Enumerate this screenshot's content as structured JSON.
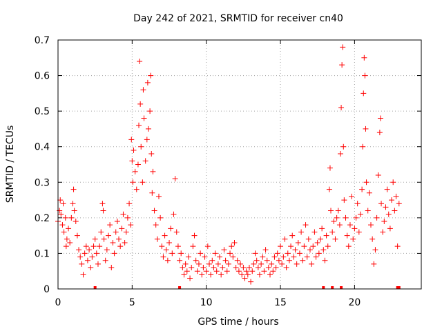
{
  "chart_data": {
    "type": "scatter",
    "title": "Day 242 of 2021, SRMTID for receiver cn40",
    "xlabel": "GPS time / hours",
    "ylabel": "SRMTID / TECUs",
    "xlim": [
      0,
      24.5
    ],
    "ylim": [
      0,
      0.7
    ],
    "x_ticks": [
      {
        "value": 0,
        "label": "0"
      },
      {
        "value": 5,
        "label": "5"
      },
      {
        "value": 10,
        "label": "10"
      },
      {
        "value": 15,
        "label": "15"
      },
      {
        "value": 20,
        "label": "20"
      }
    ],
    "y_ticks": [
      {
        "value": 0,
        "label": "0"
      },
      {
        "value": 0.1,
        "label": "0.1"
      },
      {
        "value": 0.2,
        "label": "0.2"
      },
      {
        "value": 0.3,
        "label": "0.3"
      },
      {
        "value": 0.4,
        "label": "0.4"
      },
      {
        "value": 0.5,
        "label": "0.5"
      },
      {
        "value": 0.6,
        "label": "0.6"
      },
      {
        "value": 0.7,
        "label": "0.7"
      }
    ],
    "grid": true,
    "series": [
      {
        "name": "SRMTID",
        "color": "#ff0000",
        "marker": "plus",
        "points": [
          [
            0.0,
            0.19
          ],
          [
            0.1,
            0.22
          ],
          [
            0.15,
            0.25
          ],
          [
            0.2,
            0.21
          ],
          [
            0.3,
            0.18
          ],
          [
            0.35,
            0.24
          ],
          [
            0.4,
            0.16
          ],
          [
            0.5,
            0.2
          ],
          [
            0.55,
            0.12
          ],
          [
            0.6,
            0.14
          ],
          [
            0.7,
            0.17
          ],
          [
            0.8,
            0.13
          ],
          [
            0.9,
            0.2
          ],
          [
            1.0,
            0.24
          ],
          [
            1.05,
            0.28
          ],
          [
            1.1,
            0.22
          ],
          [
            1.2,
            0.19
          ],
          [
            1.3,
            0.15
          ],
          [
            1.4,
            0.11
          ],
          [
            1.5,
            0.09
          ],
          [
            1.6,
            0.07
          ],
          [
            1.7,
            0.04
          ],
          [
            1.8,
            0.1
          ],
          [
            1.9,
            0.12
          ],
          [
            2.0,
            0.08
          ],
          [
            2.1,
            0.11
          ],
          [
            2.2,
            0.06
          ],
          [
            2.3,
            0.09
          ],
          [
            2.4,
            0.12
          ],
          [
            2.5,
            0.14
          ],
          [
            2.6,
            0.1
          ],
          [
            2.7,
            0.07
          ],
          [
            2.8,
            0.12
          ],
          [
            2.9,
            0.16
          ],
          [
            3.0,
            0.24
          ],
          [
            3.05,
            0.22
          ],
          [
            3.1,
            0.14
          ],
          [
            3.2,
            0.08
          ],
          [
            3.3,
            0.11
          ],
          [
            3.4,
            0.15
          ],
          [
            3.5,
            0.18
          ],
          [
            3.6,
            0.06
          ],
          [
            3.7,
            0.13
          ],
          [
            3.8,
            0.1
          ],
          [
            3.9,
            0.16
          ],
          [
            4.0,
            0.19
          ],
          [
            4.1,
            0.14
          ],
          [
            4.2,
            0.12
          ],
          [
            4.3,
            0.17
          ],
          [
            4.4,
            0.21
          ],
          [
            4.5,
            0.13
          ],
          [
            4.6,
            0.16
          ],
          [
            4.7,
            0.2
          ],
          [
            4.8,
            0.24
          ],
          [
            4.9,
            0.18
          ],
          [
            4.95,
            0.42
          ],
          [
            5.0,
            0.36
          ],
          [
            5.05,
            0.3
          ],
          [
            5.1,
            0.39
          ],
          [
            5.2,
            0.33
          ],
          [
            5.3,
            0.28
          ],
          [
            5.4,
            0.35
          ],
          [
            5.45,
            0.46
          ],
          [
            5.5,
            0.64
          ],
          [
            5.55,
            0.52
          ],
          [
            5.6,
            0.4
          ],
          [
            5.7,
            0.3
          ],
          [
            5.75,
            0.56
          ],
          [
            5.8,
            0.48
          ],
          [
            5.9,
            0.36
          ],
          [
            6.0,
            0.42
          ],
          [
            6.05,
            0.58
          ],
          [
            6.1,
            0.45
          ],
          [
            6.2,
            0.5
          ],
          [
            6.25,
            0.6
          ],
          [
            6.3,
            0.38
          ],
          [
            6.35,
            0.27
          ],
          [
            6.4,
            0.33
          ],
          [
            6.5,
            0.22
          ],
          [
            6.6,
            0.18
          ],
          [
            6.7,
            0.14
          ],
          [
            6.8,
            0.26
          ],
          [
            6.9,
            0.2
          ],
          [
            7.0,
            0.12
          ],
          [
            7.1,
            0.09
          ],
          [
            7.2,
            0.15
          ],
          [
            7.3,
            0.11
          ],
          [
            7.4,
            0.08
          ],
          [
            7.5,
            0.13
          ],
          [
            7.6,
            0.17
          ],
          [
            7.7,
            0.1
          ],
          [
            7.8,
            0.21
          ],
          [
            7.9,
            0.31
          ],
          [
            8.0,
            0.16
          ],
          [
            8.1,
            0.12
          ],
          [
            8.2,
            0.08
          ],
          [
            8.3,
            0.1
          ],
          [
            8.4,
            0.06
          ],
          [
            8.5,
            0.04
          ],
          [
            8.6,
            0.07
          ],
          [
            8.7,
            0.05
          ],
          [
            8.8,
            0.09
          ],
          [
            8.9,
            0.03
          ],
          [
            9.0,
            0.06
          ],
          [
            9.1,
            0.12
          ],
          [
            9.2,
            0.15
          ],
          [
            9.3,
            0.08
          ],
          [
            9.4,
            0.05
          ],
          [
            9.5,
            0.07
          ],
          [
            9.6,
            0.1
          ],
          [
            9.7,
            0.04
          ],
          [
            9.8,
            0.06
          ],
          [
            9.9,
            0.09
          ],
          [
            10.0,
            0.05
          ],
          [
            10.1,
            0.12
          ],
          [
            10.2,
            0.07
          ],
          [
            10.3,
            0.04
          ],
          [
            10.4,
            0.08
          ],
          [
            10.5,
            0.06
          ],
          [
            10.6,
            0.1
          ],
          [
            10.7,
            0.05
          ],
          [
            10.8,
            0.07
          ],
          [
            10.9,
            0.09
          ],
          [
            11.0,
            0.04
          ],
          [
            11.1,
            0.06
          ],
          [
            11.2,
            0.11
          ],
          [
            11.3,
            0.08
          ],
          [
            11.4,
            0.05
          ],
          [
            11.5,
            0.07
          ],
          [
            11.6,
            0.1
          ],
          [
            11.7,
            0.12
          ],
          [
            11.8,
            0.09
          ],
          [
            11.9,
            0.13
          ],
          [
            12.0,
            0.06
          ],
          [
            12.1,
            0.08
          ],
          [
            12.2,
            0.05
          ],
          [
            12.3,
            0.07
          ],
          [
            12.4,
            0.04
          ],
          [
            12.5,
            0.06
          ],
          [
            12.6,
            0.03
          ],
          [
            12.7,
            0.05
          ],
          [
            12.8,
            0.04
          ],
          [
            12.9,
            0.06
          ],
          [
            13.0,
            0.02
          ],
          [
            13.1,
            0.05
          ],
          [
            13.2,
            0.07
          ],
          [
            13.3,
            0.1
          ],
          [
            13.4,
            0.08
          ],
          [
            13.5,
            0.06
          ],
          [
            13.6,
            0.04
          ],
          [
            13.7,
            0.07
          ],
          [
            13.8,
            0.09
          ],
          [
            13.9,
            0.05
          ],
          [
            14.0,
            0.11
          ],
          [
            14.1,
            0.08
          ],
          [
            14.2,
            0.06
          ],
          [
            14.3,
            0.04
          ],
          [
            14.4,
            0.07
          ],
          [
            14.5,
            0.05
          ],
          [
            14.6,
            0.09
          ],
          [
            14.7,
            0.06
          ],
          [
            14.8,
            0.1
          ],
          [
            14.9,
            0.08
          ],
          [
            15.0,
            0.12
          ],
          [
            15.1,
            0.07
          ],
          [
            15.2,
            0.09
          ],
          [
            15.3,
            0.14
          ],
          [
            15.4,
            0.06
          ],
          [
            15.5,
            0.1
          ],
          [
            15.6,
            0.08
          ],
          [
            15.7,
            0.12
          ],
          [
            15.8,
            0.15
          ],
          [
            15.9,
            0.09
          ],
          [
            16.0,
            0.11
          ],
          [
            16.1,
            0.07
          ],
          [
            16.2,
            0.13
          ],
          [
            16.3,
            0.1
          ],
          [
            16.4,
            0.16
          ],
          [
            16.5,
            0.08
          ],
          [
            16.6,
            0.12
          ],
          [
            16.7,
            0.18
          ],
          [
            16.8,
            0.09
          ],
          [
            16.9,
            0.14
          ],
          [
            17.0,
            0.11
          ],
          [
            17.1,
            0.07
          ],
          [
            17.2,
            0.12
          ],
          [
            17.3,
            0.16
          ],
          [
            17.4,
            0.09
          ],
          [
            17.5,
            0.13
          ],
          [
            17.6,
            0.1
          ],
          [
            17.7,
            0.14
          ],
          [
            17.8,
            0.17
          ],
          [
            17.9,
            0.11
          ],
          [
            18.0,
            0.08
          ],
          [
            18.1,
            0.15
          ],
          [
            18.2,
            0.12
          ],
          [
            18.3,
            0.28
          ],
          [
            18.35,
            0.34
          ],
          [
            18.4,
            0.22
          ],
          [
            18.5,
            0.16
          ],
          [
            18.6,
            0.19
          ],
          [
            18.7,
            0.14
          ],
          [
            18.8,
            0.2
          ],
          [
            18.9,
            0.22
          ],
          [
            19.0,
            0.18
          ],
          [
            19.05,
            0.38
          ],
          [
            19.1,
            0.51
          ],
          [
            19.15,
            0.63
          ],
          [
            19.2,
            0.68
          ],
          [
            19.25,
            0.4
          ],
          [
            19.3,
            0.25
          ],
          [
            19.4,
            0.2
          ],
          [
            19.5,
            0.15
          ],
          [
            19.6,
            0.12
          ],
          [
            19.7,
            0.18
          ],
          [
            19.8,
            0.26
          ],
          [
            19.9,
            0.14
          ],
          [
            20.0,
            0.17
          ],
          [
            20.1,
            0.2
          ],
          [
            20.2,
            0.24
          ],
          [
            20.3,
            0.16
          ],
          [
            20.4,
            0.21
          ],
          [
            20.5,
            0.28
          ],
          [
            20.55,
            0.4
          ],
          [
            20.6,
            0.55
          ],
          [
            20.65,
            0.65
          ],
          [
            20.7,
            0.6
          ],
          [
            20.75,
            0.45
          ],
          [
            20.8,
            0.3
          ],
          [
            20.9,
            0.22
          ],
          [
            21.0,
            0.27
          ],
          [
            21.1,
            0.18
          ],
          [
            21.2,
            0.14
          ],
          [
            21.3,
            0.07
          ],
          [
            21.4,
            0.11
          ],
          [
            21.5,
            0.2
          ],
          [
            21.6,
            0.32
          ],
          [
            21.7,
            0.44
          ],
          [
            21.75,
            0.48
          ],
          [
            21.8,
            0.24
          ],
          [
            21.9,
            0.16
          ],
          [
            22.0,
            0.19
          ],
          [
            22.1,
            0.23
          ],
          [
            22.2,
            0.28
          ],
          [
            22.3,
            0.21
          ],
          [
            22.4,
            0.17
          ],
          [
            22.5,
            0.25
          ],
          [
            22.6,
            0.3
          ],
          [
            22.7,
            0.22
          ],
          [
            22.8,
            0.26
          ],
          [
            22.9,
            0.12
          ],
          [
            23.0,
            0.24
          ]
        ]
      }
    ],
    "gap_markers": [
      2.5,
      8.2,
      17.9,
      18.5,
      19.1,
      22.9,
      23.0
    ]
  }
}
